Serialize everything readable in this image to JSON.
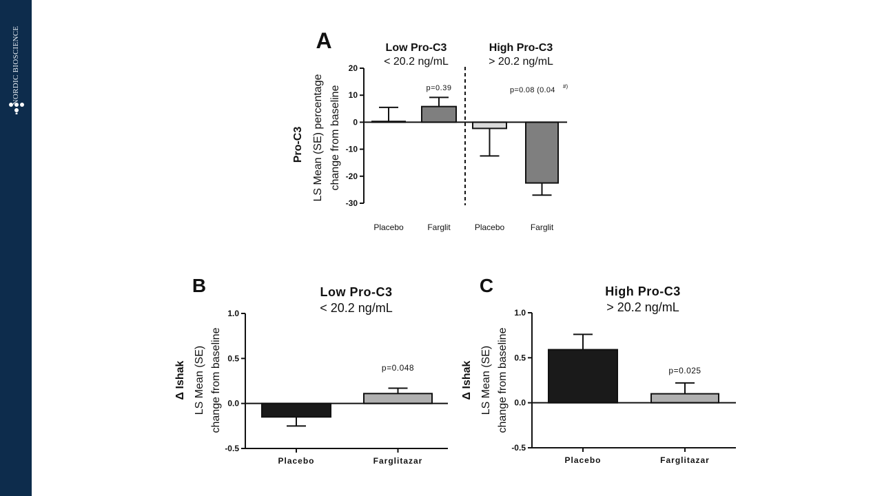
{
  "brand": {
    "name": "NORDIC BIOSCIENCE"
  },
  "colors": {
    "sidebar": "#0d2c4c",
    "white": "#ffffff",
    "dark_gray": "#7f7f7f",
    "light_gray": "#d9d9d9",
    "mid_gray": "#b0b0b0",
    "black": "#1a1a1a"
  },
  "chart_data": [
    {
      "panel": "A",
      "type": "bar",
      "ylabel_title": "Pro-C3",
      "ylabel_lines": [
        "LS Mean (SE) percentage",
        "change from baseline"
      ],
      "groups": [
        {
          "title": "Low Pro-C3",
          "subtitle": "< 20.2 ng/mL",
          "pvalue": "p=0.39"
        },
        {
          "title": "High Pro-C3",
          "subtitle": "> 20.2 ng/mL",
          "pvalue": "p=0.08 (0.04",
          "pvalue_sup": "#)"
        }
      ],
      "categories": [
        "Placebo",
        "Farglit",
        "Placebo",
        "Farglit"
      ],
      "values": [
        0.3,
        5.8,
        -2.3,
        -22.5
      ],
      "errors": [
        5.2,
        3.4,
        10.2,
        4.5
      ],
      "bar_colors": [
        "#ffffff",
        "#7f7f7f",
        "#d9d9d9",
        "#7f7f7f"
      ],
      "ylim": [
        -30,
        20
      ],
      "yticks": [
        "20",
        "10",
        "0",
        "-10",
        "-20",
        "-30"
      ],
      "ytick_values": [
        20,
        10,
        0,
        -10,
        -20,
        -30
      ]
    },
    {
      "panel": "B",
      "type": "bar",
      "title": "Low Pro-C3",
      "subtitle": "< 20.2 ng/mL",
      "ylabel_title": "Δ Ishak",
      "ylabel_lines": [
        "LS Mean (SE)",
        "change from baseline"
      ],
      "categories": [
        "Placebo",
        "Farglitazar"
      ],
      "values": [
        -0.15,
        0.11
      ],
      "errors": [
        0.1,
        0.06
      ],
      "bar_colors": [
        "#1a1a1a",
        "#b0b0b0"
      ],
      "pvalue": "p=0.048",
      "ylim": [
        -0.5,
        1.0
      ],
      "yticks": [
        "1.0",
        "0.5",
        "0.0",
        "-0.5"
      ],
      "ytick_values": [
        1.0,
        0.5,
        0.0,
        -0.5
      ]
    },
    {
      "panel": "C",
      "type": "bar",
      "title": "High Pro-C3",
      "subtitle": "> 20.2 ng/mL",
      "ylabel_title": "Δ Ishak",
      "ylabel_lines": [
        "LS Mean (SE)",
        "change from baseline"
      ],
      "categories": [
        "Placebo",
        "Farglitazar"
      ],
      "values": [
        0.59,
        0.1
      ],
      "errors": [
        0.17,
        0.12
      ],
      "bar_colors": [
        "#1a1a1a",
        "#b0b0b0"
      ],
      "pvalue": "p=0.025",
      "ylim": [
        -0.5,
        1.0
      ],
      "yticks": [
        "1.0",
        "0.5",
        "0.0",
        "-0.5"
      ],
      "ytick_values": [
        1.0,
        0.5,
        0.0,
        -0.5
      ]
    }
  ]
}
